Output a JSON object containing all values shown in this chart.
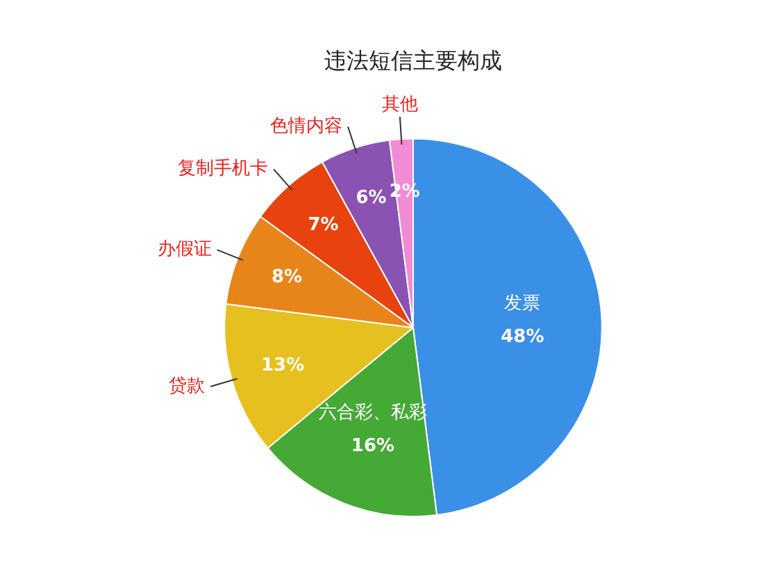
{
  "chart_data": {
    "type": "pie",
    "title": "违法短信主要构成",
    "categories": [
      "发票",
      "六合彩、私彩",
      "贷款",
      "办假证",
      "复制手机卡",
      "色情内容",
      "其他"
    ],
    "values": [
      48,
      16,
      13,
      8,
      7,
      6,
      2
    ],
    "value_labels": [
      "48%",
      "16%",
      "13%",
      "8%",
      "7%",
      "6%",
      "2%"
    ],
    "colors": [
      "#3a8fe6",
      "#45a935",
      "#e6c01e",
      "#e8851a",
      "#e8420e",
      "#8a52b2",
      "#f28ad6"
    ]
  }
}
